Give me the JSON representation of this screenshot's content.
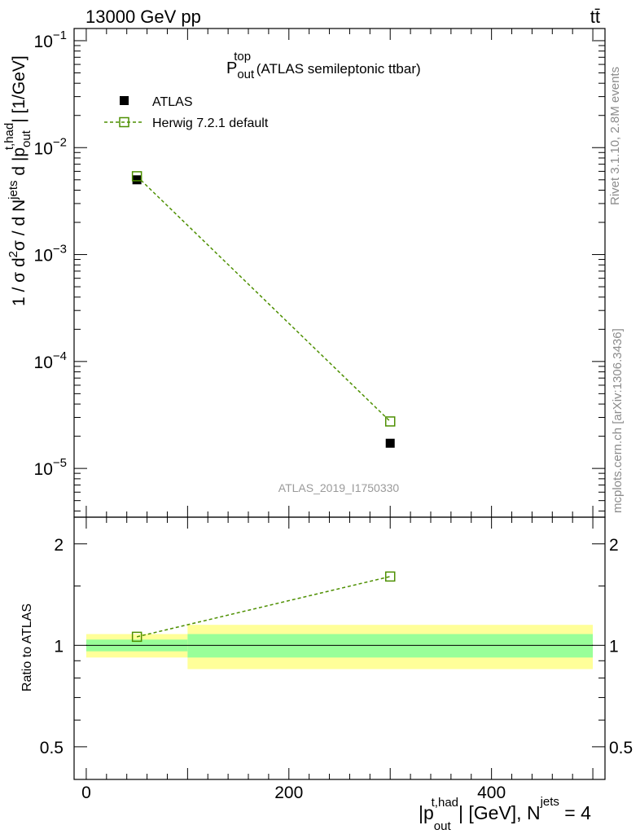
{
  "header": {
    "energy_label": "13000 GeV pp",
    "process_label": "tt̄"
  },
  "side_labels": {
    "rivet": "Rivet 3.1.10,  2.8M events",
    "mcplots": "mcplots.cern.ch [arXiv:1306.3436]"
  },
  "analysis_id": "ATLAS_2019_I1750330",
  "chart_data": [
    {
      "type": "scatter",
      "title": {
        "main": "P",
        "sup": "top",
        "sub": "out",
        "rest": " (ATLAS semileptonic ttbar)"
      },
      "ylabel": "1 / σ d²σ / d N^jets d |p_out^t,had| [1/GeV]",
      "yscale": "log",
      "ylim": [
        3.5e-06,
        0.13
      ],
      "xlim": [
        -12,
        512
      ],
      "yticks": [
        {
          "value": 0.1,
          "mant": "10",
          "exp": "−1"
        },
        {
          "value": 0.01,
          "mant": "10",
          "exp": "−2"
        },
        {
          "value": 0.001,
          "mant": "10",
          "exp": "−3"
        },
        {
          "value": 0.0001,
          "mant": "10",
          "exp": "−4"
        },
        {
          "value": 1e-05,
          "mant": "10",
          "exp": "−5"
        }
      ],
      "legend": [
        {
          "label": "ATLAS",
          "color": "#000000",
          "marker": "filled-square"
        },
        {
          "label": "Herwig 7.2.1 default",
          "color": "#4d8f00",
          "marker": "open-square",
          "line": "dashed"
        }
      ],
      "series": [
        {
          "name": "ATLAS",
          "x": [
            50,
            300
          ],
          "y": [
            0.005,
            1.72e-05
          ]
        },
        {
          "name": "Herwig 7.2.1 default",
          "x": [
            50,
            300
          ],
          "y": [
            0.0054,
            2.75e-05
          ]
        }
      ]
    },
    {
      "type": "line",
      "ylabel": "Ratio to ATLAS",
      "yscale": "log",
      "ylim": [
        0.4,
        2.4
      ],
      "yticks": [
        {
          "value": 0.5,
          "label": "0.5"
        },
        {
          "value": 1,
          "label": "1"
        },
        {
          "value": 2,
          "label": "2"
        }
      ],
      "xlim": [
        -12,
        512
      ],
      "xticks": [
        {
          "value": 0,
          "label": "0"
        },
        {
          "value": 200,
          "label": "200"
        },
        {
          "value": 400,
          "label": "400"
        }
      ],
      "xlabel": "|p_out^t,had| [GeV], N^jets = 4",
      "bands": [
        {
          "x_low": 0,
          "x_high": 100,
          "yellow": [
            0.92,
            1.08
          ],
          "green": [
            0.96,
            1.04
          ]
        },
        {
          "x_low": 100,
          "x_high": 500,
          "yellow": [
            0.85,
            1.15
          ],
          "green": [
            0.92,
            1.08
          ]
        }
      ],
      "band_colors": {
        "yellow": "#ffff99",
        "green": "#99ff99"
      },
      "series": [
        {
          "name": "Herwig 7.2.1 default",
          "x": [
            50,
            300
          ],
          "y": [
            1.06,
            1.6
          ]
        }
      ]
    }
  ]
}
